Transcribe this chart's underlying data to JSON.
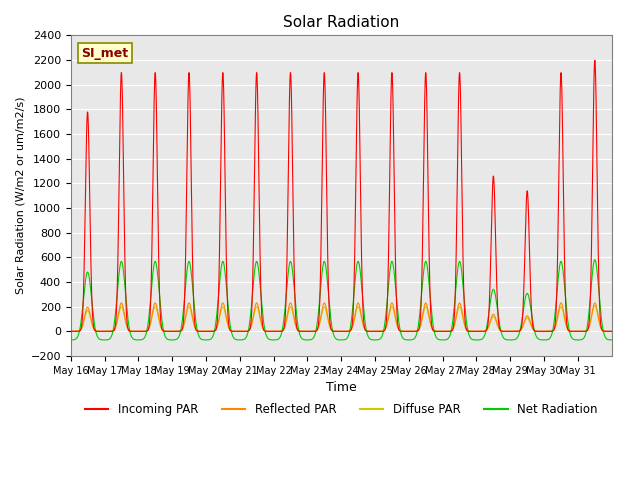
{
  "title": "Solar Radiation",
  "ylabel": "Solar Radiation (W/m2 or um/m2/s)",
  "xlabel": "Time",
  "ylim": [
    -200,
    2400
  ],
  "yticks": [
    -200,
    0,
    200,
    400,
    600,
    800,
    1000,
    1200,
    1400,
    1600,
    1800,
    2000,
    2200,
    2400
  ],
  "x_tick_labels": [
    "May 16",
    "May 17",
    "May 18",
    "May 19",
    "May 20",
    "May 21",
    "May 22",
    "May 23",
    "May 24",
    "May 25",
    "May 26",
    "May 27",
    "May 28",
    "May 29",
    "May 30",
    "May 31"
  ],
  "n_days": 16,
  "start_day": 16,
  "incoming_peaks": [
    1780,
    2100,
    2100,
    2100,
    2100,
    2100,
    2100,
    2100,
    2100,
    2100,
    2100,
    2100,
    1260,
    1140,
    2100,
    2200
  ],
  "colors": {
    "incoming": "#ff0000",
    "reflected": "#ff8800",
    "diffuse": "#cccc00",
    "net": "#00cc00"
  },
  "plot_bg_color": "#e8e8e8",
  "legend_label": "SI_met",
  "legend_labels": [
    "Incoming PAR",
    "Reflected PAR",
    "Diffuse PAR",
    "Net Radiation"
  ]
}
